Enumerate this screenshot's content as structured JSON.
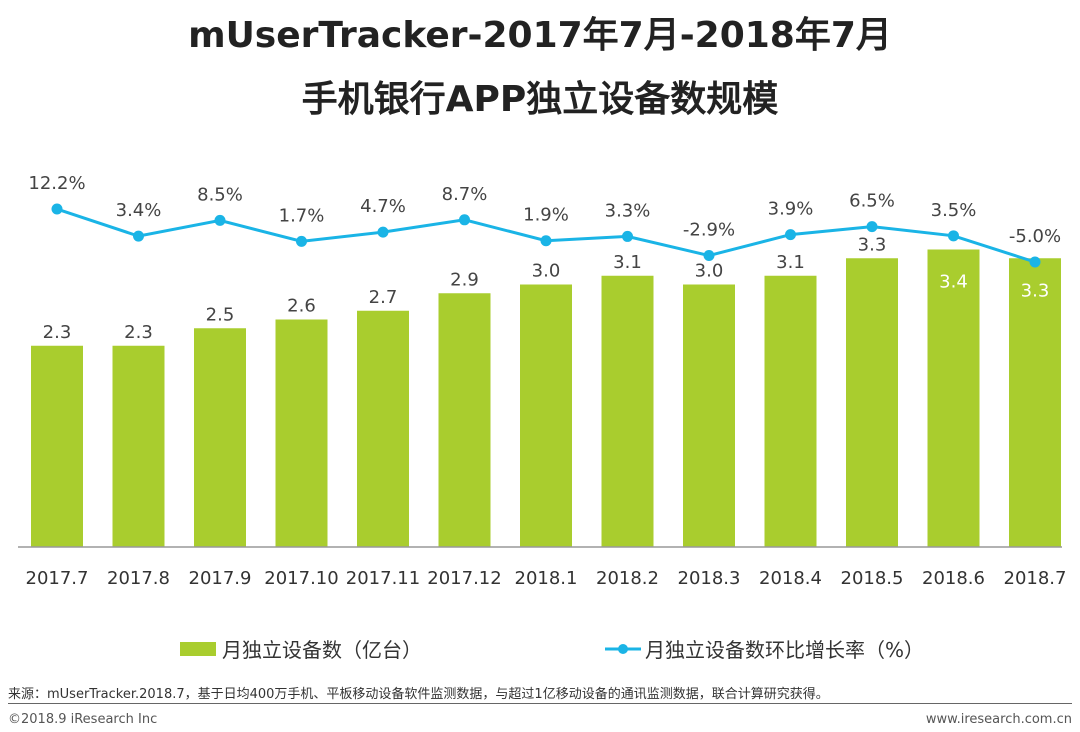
{
  "chart_data": {
    "type": "bar+line",
    "title": "mUserTracker-2017年7月-2018年7月",
    "subtitle": "手机银行APP独立设备数规模",
    "categories": [
      "2017.7",
      "2017.8",
      "2017.9",
      "2017.10",
      "2017.11",
      "2017.12",
      "2018.1",
      "2018.2",
      "2018.3",
      "2018.4",
      "2018.5",
      "2018.6",
      "2018.7"
    ],
    "series": [
      {
        "name": "月独立设备数（亿台）",
        "type": "bar",
        "color": "#a9cd2e",
        "values": [
          2.3,
          2.3,
          2.5,
          2.6,
          2.7,
          2.9,
          3.0,
          3.1,
          3.0,
          3.1,
          3.3,
          3.4,
          3.3
        ],
        "labels": [
          "2.3",
          "2.3",
          "2.5",
          "2.6",
          "2.7",
          "2.9",
          "3.0",
          "3.1",
          "3.0",
          "3.1",
          "3.3",
          "3.4",
          "3.3"
        ]
      },
      {
        "name": "月独立设备数环比增长率（%）",
        "type": "line",
        "color": "#1ab4e6",
        "values": [
          12.2,
          3.4,
          8.5,
          1.7,
          4.7,
          8.7,
          1.9,
          3.3,
          -2.9,
          3.9,
          6.5,
          3.5,
          -5.0
        ],
        "labels": [
          "12.2%",
          "3.4%",
          "8.5%",
          "1.7%",
          "4.7%",
          "8.7%",
          "1.9%",
          "3.3%",
          "-2.9%",
          "3.9%",
          "6.5%",
          "3.5%",
          "-5.0%"
        ]
      }
    ],
    "legend": "bottom"
  },
  "source": "来源：mUserTracker.2018.7，基于日均400万手机、平板移动设备软件监测数据，与超过1亿移动设备的通讯监测数据，联合计算研究获得。",
  "copyright": "©2018.9 iResearch Inc",
  "website": "www.iresearch.com.cn"
}
